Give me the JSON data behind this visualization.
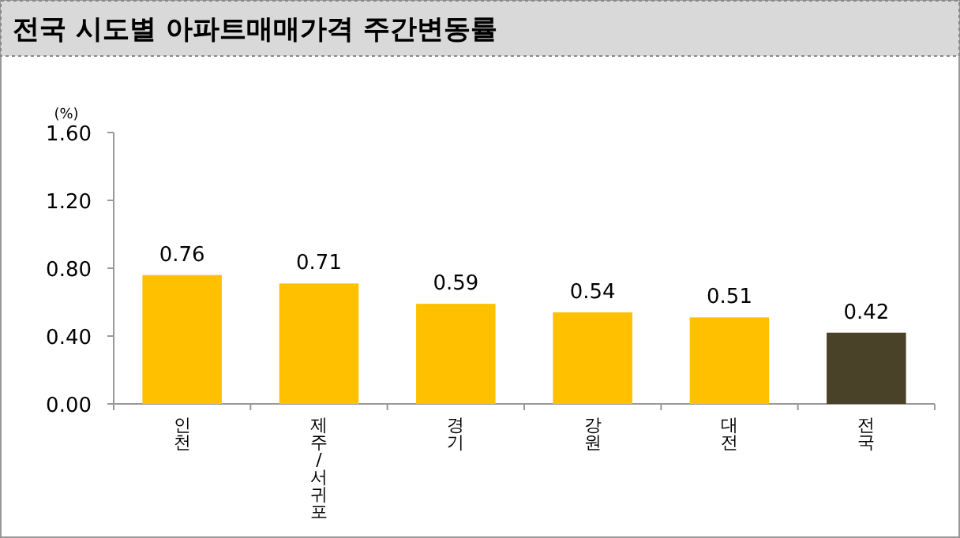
{
  "chart_data": {
    "type": "bar",
    "title": "전국 시도별 아파트매매가격 주간변동률",
    "ylabel": "(%)",
    "categories": [
      "인천",
      "제주/서귀포",
      "경기",
      "강원",
      "대전",
      "전국"
    ],
    "values": [
      0.76,
      0.71,
      0.59,
      0.54,
      0.51,
      0.42
    ],
    "colors": [
      "#ffc000",
      "#ffc000",
      "#ffc000",
      "#ffc000",
      "#ffc000",
      "#4a4228"
    ],
    "ylim": [
      0,
      1.6
    ],
    "yticks": [
      {
        "value": 0,
        "label": "0.00"
      },
      {
        "value": 0.4,
        "label": "0.40"
      },
      {
        "value": 0.8,
        "label": "0.80"
      },
      {
        "value": 1.2,
        "label": "1.20"
      },
      {
        "value": 1.6,
        "label": "1.60"
      }
    ],
    "data_labels": true,
    "grid": false
  }
}
